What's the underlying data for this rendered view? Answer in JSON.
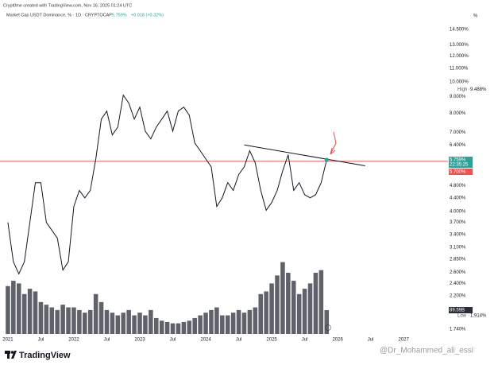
{
  "header": {
    "credit": "Crypt0me created with TradingView.com, Nov 16, 2025 01:24 UTC",
    "symbol": "Market Cap USDT Dominance, % · 1D · CRYPTOCAP",
    "last": "5.759%",
    "change": "+0.018 (+0.32%)",
    "unit": "%"
  },
  "footer": {
    "brand": "TradingView",
    "watermark": "@Dr_Mohammed_ali_essi"
  },
  "chart_data": {
    "type": "line",
    "log_scale": true,
    "color": "#131722",
    "x": [
      "2021-01",
      "2021-02",
      "2021-03",
      "2021-04",
      "2021-05",
      "2021-06",
      "2021-07",
      "2021-08",
      "2021-09",
      "2021-10",
      "2021-11",
      "2021-12",
      "2022-01",
      "2022-02",
      "2022-03",
      "2022-04",
      "2022-05",
      "2022-06",
      "2022-07",
      "2022-08",
      "2022-09",
      "2022-10",
      "2022-11",
      "2022-12",
      "2023-01",
      "2023-02",
      "2023-03",
      "2023-04",
      "2023-05",
      "2023-06",
      "2023-07",
      "2023-08",
      "2023-09",
      "2023-10",
      "2023-11",
      "2023-12",
      "2024-01",
      "2024-02",
      "2024-03",
      "2024-04",
      "2024-05",
      "2024-06",
      "2024-07",
      "2024-08",
      "2024-09",
      "2024-10",
      "2024-11",
      "2024-12",
      "2025-01",
      "2025-02",
      "2025-03",
      "2025-04",
      "2025-05",
      "2025-06",
      "2025-07",
      "2025-08",
      "2025-09",
      "2025-10",
      "2025-11"
    ],
    "values": [
      3.7,
      2.8,
      2.57,
      2.8,
      3.7,
      4.9,
      4.9,
      3.7,
      3.5,
      3.31,
      2.64,
      2.8,
      4.14,
      4.64,
      4.4,
      4.64,
      5.8,
      7.68,
      8.13,
      6.87,
      7.26,
      9.1,
      8.6,
      7.68,
      8.36,
      7.05,
      6.68,
      7.26,
      7.68,
      8.13,
      7.05,
      8.13,
      8.36,
      7.9,
      6.49,
      6.14,
      5.8,
      5.48,
      4.14,
      4.4,
      4.9,
      4.64,
      5.19,
      5.48,
      6.14,
      5.64,
      4.64,
      4.03,
      4.26,
      4.64,
      5.33,
      5.97,
      4.64,
      4.9,
      4.5,
      4.4,
      4.5,
      4.9,
      5.759
    ],
    "volume": {
      "axis": "y2",
      "color": "#2a2e39",
      "values": [
        180,
        200,
        190,
        150,
        170,
        160,
        120,
        110,
        100,
        90,
        110,
        100,
        100,
        90,
        80,
        90,
        150,
        120,
        90,
        80,
        70,
        80,
        90,
        70,
        80,
        70,
        90,
        60,
        50,
        45,
        40,
        40,
        45,
        50,
        60,
        70,
        80,
        90,
        100,
        70,
        70,
        80,
        90,
        80,
        90,
        100,
        150,
        160,
        190,
        220,
        270,
        230,
        200,
        150,
        170,
        190,
        230,
        240,
        89.59
      ]
    },
    "xlim": [
      "2020-12",
      "2027-08"
    ],
    "xticks": [
      {
        "value": "2021-01",
        "label": "2021"
      },
      {
        "value": "2021-07",
        "label": "Jul"
      },
      {
        "value": "2022-01",
        "label": "2022"
      },
      {
        "value": "2022-07",
        "label": "Jul"
      },
      {
        "value": "2023-01",
        "label": "2023"
      },
      {
        "value": "2023-07",
        "label": "Jul"
      },
      {
        "value": "2024-01",
        "label": "2024"
      },
      {
        "value": "2024-07",
        "label": "Jul"
      },
      {
        "value": "2025-01",
        "label": "2025"
      },
      {
        "value": "2025-07",
        "label": "Jul"
      },
      {
        "value": "2026-01",
        "label": "2026"
      },
      {
        "value": "2026-07",
        "label": "Jul"
      },
      {
        "value": "2027-01",
        "label": "2027"
      }
    ],
    "ylim": [
      1.68,
      15.5
    ],
    "yticks": [
      {
        "value": 14.5,
        "label": "14.500%"
      },
      {
        "value": 13,
        "label": "13.000%"
      },
      {
        "value": 12,
        "label": "12.000%"
      },
      {
        "value": 11,
        "label": "11.000%"
      },
      {
        "value": 10,
        "label": "10.000%"
      },
      {
        "value": 9,
        "label": "9.000%"
      },
      {
        "value": 8,
        "label": "8.000%"
      },
      {
        "value": 7,
        "label": "7.000%"
      },
      {
        "value": 6.4,
        "label": "6.400%"
      },
      {
        "value": 5.3,
        "label": "5.300%"
      },
      {
        "value": 4.8,
        "label": "4.800%"
      },
      {
        "value": 4.4,
        "label": "4.400%"
      },
      {
        "value": 4,
        "label": "4.000%"
      },
      {
        "value": 3.7,
        "label": "3.700%"
      },
      {
        "value": 3.4,
        "label": "3.400%"
      },
      {
        "value": 3.1,
        "label": "3.100%"
      },
      {
        "value": 2.85,
        "label": "2.850%"
      },
      {
        "value": 2.6,
        "label": "2.600%"
      },
      {
        "value": 2.4,
        "label": "2.400%"
      },
      {
        "value": 2.2,
        "label": "2.200%"
      },
      {
        "value": 1.74,
        "label": "1.740%"
      }
    ],
    "y2lim": [
      0,
      1180
    ],
    "grid": false,
    "hline": {
      "value": 5.7,
      "color": "#e04848"
    },
    "trendline": {
      "x": [
        "2024-08",
        "2026-06"
      ],
      "values": [
        6.4,
        5.52
      ],
      "color": "#131722"
    },
    "price_labels": [
      {
        "tag": "High",
        "value": 9.488,
        "label": "9.488%"
      },
      {
        "value": 5.759,
        "label": "5.759%",
        "sub": "22:35:25",
        "color": "#26a69a"
      },
      {
        "value": 5.7,
        "label": "5.700%",
        "color": "#ef5350"
      },
      {
        "axis": "y2",
        "value": 89.59,
        "label": "89.59B",
        "color": "#2a2e39"
      },
      {
        "tag": "Low",
        "value": 1.914,
        "label": "1.914%"
      }
    ]
  }
}
